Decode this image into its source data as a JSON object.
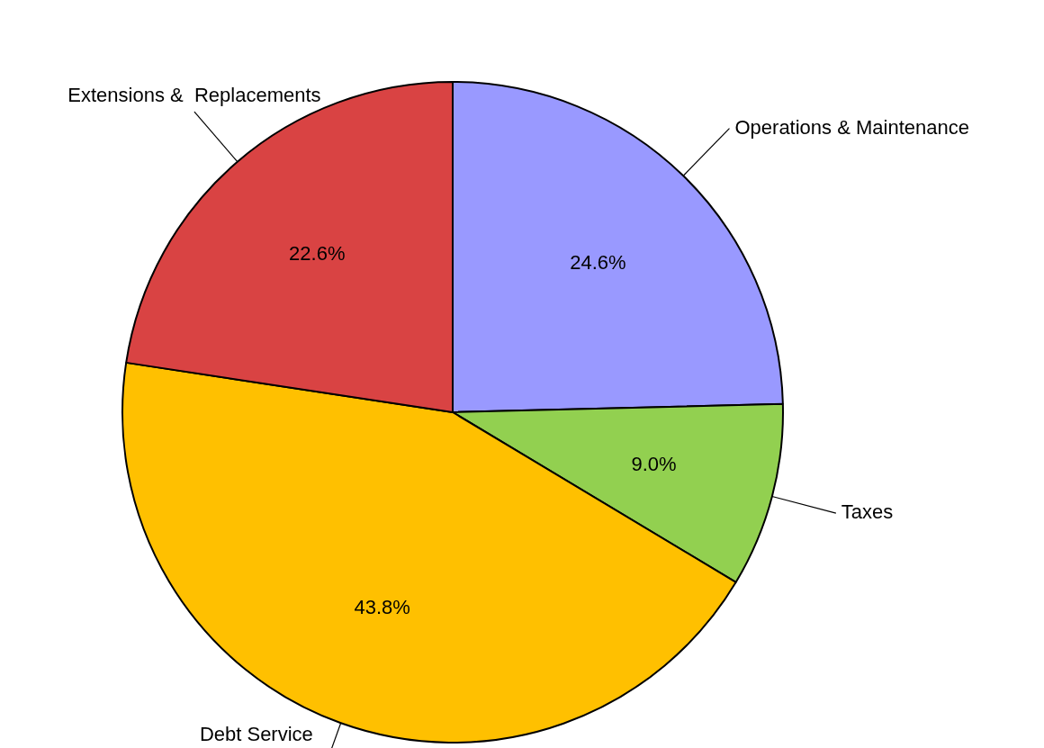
{
  "chart_data": {
    "type": "pie",
    "categories": [
      "Operations & Maintenance",
      "Taxes",
      "Debt Service",
      "Extensions &  Replacements"
    ],
    "values": [
      24.6,
      9.0,
      43.8,
      22.6
    ],
    "colors": [
      "#9999ff",
      "#92d050",
      "#ffc000",
      "#d94343"
    ],
    "value_labels": [
      "24.6%",
      "9.0%",
      "43.8%",
      "22.6%"
    ],
    "legend": false
  }
}
